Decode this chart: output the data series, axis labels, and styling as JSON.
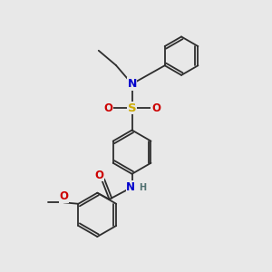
{
  "background_color": "#e8e8e8",
  "atom_colors": {
    "C": "#2d2d2d",
    "N": "#0000cc",
    "O": "#cc0000",
    "S": "#ccaa00",
    "H": "#507070"
  },
  "bond_color": "#2d2d2d",
  "bond_lw": 1.3,
  "figsize": [
    3.0,
    3.0
  ],
  "dpi": 100,
  "xlim": [
    0,
    10
  ],
  "ylim": [
    0,
    10
  ]
}
